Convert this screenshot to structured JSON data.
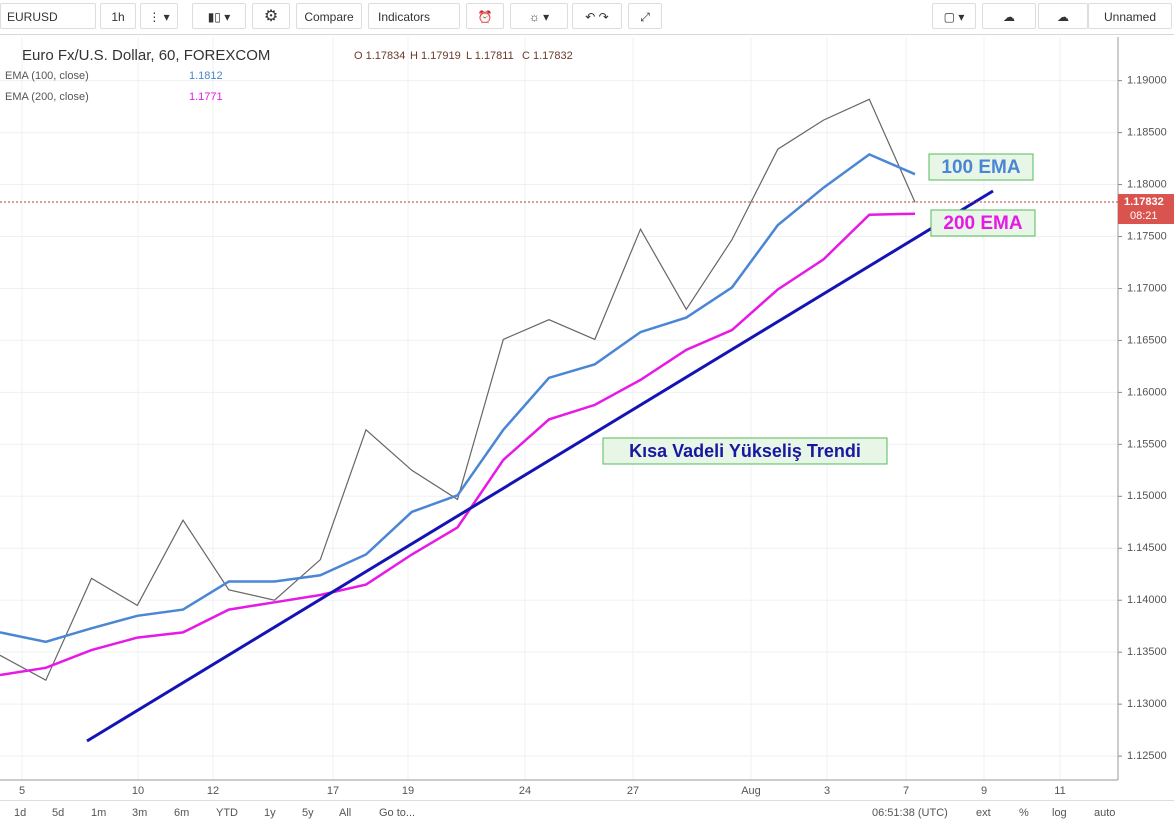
{
  "toolbar": {
    "symbol": "EURUSD",
    "interval": "1h",
    "buttons": [
      "Compare",
      "Indicators"
    ],
    "layout": "Unnamed"
  },
  "legend": {
    "title": "Euro Fx/U.S. Dollar, 60, FOREXCOM",
    "ohlc": [
      "O 1.17834",
      "H 1.17919",
      "L 1.17811",
      "C 1.17832"
    ],
    "studies": [
      {
        "value_label": "1.1812"
      },
      {
        "value_label": "1.1771"
      }
    ]
  },
  "chart_data": {
    "type": "line",
    "x_labels": [
      "5",
      "10",
      "12",
      "17",
      "19",
      "24",
      "27",
      "Aug",
      "3",
      "7",
      "9",
      "11"
    ],
    "ylim": [
      1.1227,
      1.1942
    ],
    "yticks": [
      {
        "value": 1.19,
        "label": "1.19000"
      },
      {
        "value": 1.185,
        "label": "1.18500"
      },
      {
        "value": 1.18,
        "label": "1.18000"
      },
      {
        "value": 1.175,
        "label": "1.17500"
      },
      {
        "value": 1.17,
        "label": "1.17000"
      },
      {
        "value": 1.165,
        "label": "1.16500"
      },
      {
        "value": 1.16,
        "label": "1.16000"
      },
      {
        "value": 1.155,
        "label": "1.15500"
      },
      {
        "value": 1.15,
        "label": "1.15000"
      },
      {
        "value": 1.145,
        "label": "1.14500"
      },
      {
        "value": 1.14,
        "label": "1.14000"
      },
      {
        "value": 1.135,
        "label": "1.13500"
      },
      {
        "value": 1.13,
        "label": "1.13000"
      },
      {
        "value": 1.125,
        "label": "1.12500"
      }
    ],
    "grid": true,
    "series": [
      {
        "color": "#666666",
        "values": [
          1.1347,
          1.1323,
          1.1421,
          1.1395,
          1.1477,
          1.141,
          1.14,
          1.1439,
          1.1564,
          1.1525,
          1.1497,
          1.1651,
          1.167,
          1.1651,
          1.1757,
          1.168,
          1.1747,
          1.1834,
          1.1862,
          1.1882,
          1.1783
        ]
      },
      {
        "name": "EMA (100, close)",
        "color": "#4a86d4",
        "values": [
          1.1369,
          1.136,
          1.1373,
          1.1385,
          1.1391,
          1.1418,
          1.1418,
          1.1424,
          1.1444,
          1.1485,
          1.1501,
          1.1564,
          1.1614,
          1.1627,
          1.1658,
          1.1672,
          1.1701,
          1.1761,
          1.1797,
          1.1829,
          1.181
        ]
      },
      {
        "name": "EMA (200, close)",
        "color": "#e619e6",
        "values": [
          1.1328,
          1.1335,
          1.1352,
          1.1364,
          1.1369,
          1.1391,
          1.1398,
          1.1405,
          1.1415,
          1.1444,
          1.147,
          1.1535,
          1.1574,
          1.1588,
          1.1612,
          1.1641,
          1.166,
          1.1699,
          1.1728,
          1.1771,
          1.1772
        ]
      }
    ],
    "current_price": {
      "value": 1.17832,
      "label": "1.17832",
      "countdown": "08:21"
    },
    "annotations": [
      "100 EMA",
      "200 EMA",
      "Kısa Vadeli Yükseliş Trendi"
    ]
  },
  "bottom_bar": {
    "ranges": [
      "1d",
      "5d",
      "1m",
      "3m",
      "6m",
      "YTD",
      "1y",
      "5y",
      "All"
    ],
    "goto": "Go to...",
    "clock": "06:51:38 (UTC)",
    "toggles": [
      "ext",
      "%",
      "log",
      "auto"
    ]
  }
}
